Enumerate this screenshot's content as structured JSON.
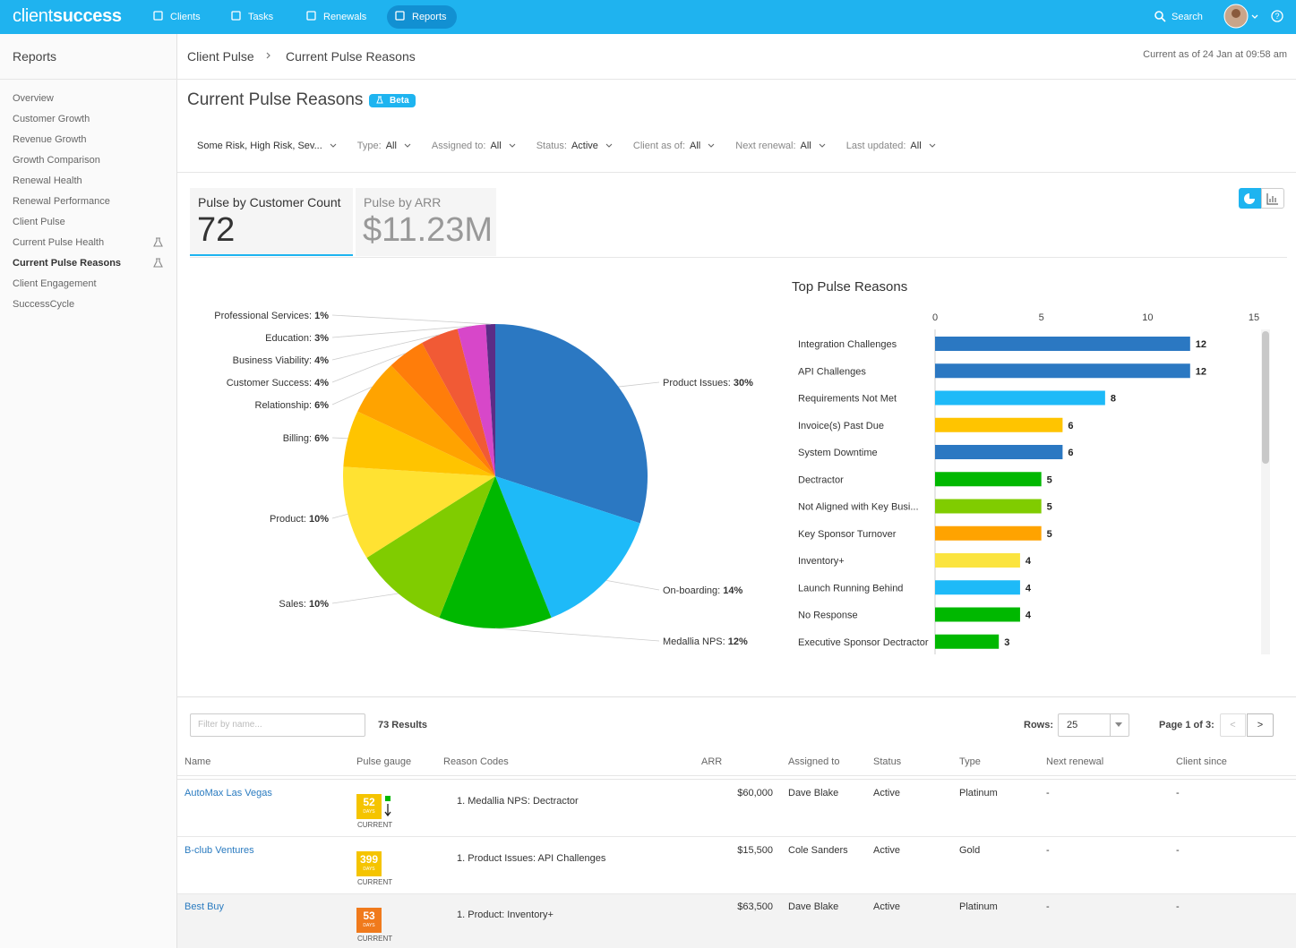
{
  "nav": {
    "logo": [
      "client",
      "success"
    ],
    "items": [
      "Clients",
      "Tasks",
      "Renewals",
      "Reports"
    ],
    "active": 3,
    "search": "Search"
  },
  "sidebar": {
    "title": "Reports",
    "items": [
      "Overview",
      "Customer Growth",
      "Revenue Growth",
      "Growth Comparison",
      "Renewal Health",
      "Renewal Performance",
      "Client Pulse",
      "Current Pulse Health",
      "Current Pulse Reasons",
      "Client Engagement",
      "SuccessCycle"
    ],
    "active": 8,
    "beta_items": [
      7,
      8
    ]
  },
  "breadcrumb": [
    "Client Pulse",
    "Current Pulse Reasons"
  ],
  "timestamp": "Current as of 24 Jan at 09:58 am",
  "page_title": "Current Pulse Reasons",
  "badge": "Beta",
  "filters": [
    {
      "value": "Some Risk, High Risk, Sev..."
    },
    {
      "label": "Type:",
      "value": "All"
    },
    {
      "label": "Assigned to:",
      "value": "All"
    },
    {
      "label": "Status:",
      "value": "Active"
    },
    {
      "label": "Client as of:",
      "value": "All"
    },
    {
      "label": "Next renewal:",
      "value": "All"
    },
    {
      "label": "Last updated:",
      "value": "All"
    }
  ],
  "tabs": [
    {
      "label": "Pulse by Customer Count",
      "value": 72
    },
    {
      "label": "Pulse by ARR",
      "value": "$11.23M"
    }
  ],
  "active_tab": 0,
  "chart_data": [
    {
      "type": "pie",
      "categories": [
        "Product Issues:",
        "On-boarding:",
        "Medallia NPS:",
        "Sales:",
        "Product:",
        "Billing:",
        "Relationship:",
        "Customer Success:",
        "Business Viability:",
        "Education:",
        "Professional Services:"
      ],
      "values": [
        30,
        14,
        12,
        10,
        10,
        6,
        6,
        4,
        4,
        3,
        1
      ],
      "value_labels": [
        "30%",
        "14%",
        "12%",
        "10%",
        "10%",
        "6%",
        "6%",
        "4%",
        "4%",
        "3%",
        "1%"
      ],
      "colors": [
        "#2b78c2",
        "#1ebaf8",
        "#00b800",
        "#80cc00",
        "#ffe232",
        "#ffc400",
        "#ffa300",
        "#ff7d0a",
        "#f15a35",
        "#d747c9",
        "#5c2c86"
      ]
    },
    {
      "type": "hbar",
      "title": "Top Pulse Reasons",
      "categories": [
        "Integration Challenges",
        "API Challenges",
        "Requirements Not Met",
        "Invoice(s) Past Due",
        "System Downtime",
        "Dectractor",
        "Not Aligned with Key Busi...",
        "Key Sponsor Turnover",
        "Inventory+",
        "Launch Running Behind",
        "No Response",
        "Executive Sponsor Dectractor"
      ],
      "values": [
        12,
        12,
        8,
        6,
        6,
        5,
        5,
        5,
        4,
        4,
        4,
        3
      ],
      "colors": [
        "#2b78c2",
        "#2b78c2",
        "#1ebaf8",
        "#ffc400",
        "#2b78c2",
        "#00b800",
        "#80cc00",
        "#ffa300",
        "#fbe43f",
        "#1ebaf8",
        "#00b800",
        "#00b800"
      ],
      "xlim": [
        0,
        15
      ],
      "xticks": [
        0,
        5,
        10,
        15
      ]
    }
  ],
  "table": {
    "filter_placeholder": "Filter by name...",
    "results": "73 Results",
    "rows_label": "Rows:",
    "rows_value": 25,
    "page": "Page 1 of 3:",
    "prev": "<",
    "next": ">",
    "columns": [
      "Name",
      "Pulse gauge",
      "Reason Codes",
      "ARR",
      "Assigned to",
      "Status",
      "Type",
      "Next renewal",
      "Client since"
    ],
    "rows": [
      {
        "name": "AutoMax Las Vegas",
        "gauge": 52,
        "gauge_unit": "DAYS",
        "gauge_status": "CURRENT",
        "gauge_color": "#f5c400",
        "reason": "1. Medallia NPS: Dectractor",
        "arr": "$60,000",
        "assigned": "Dave Blake",
        "status": "Active",
        "type": "Platinum",
        "next_renewal": "-",
        "client_since": "-"
      },
      {
        "name": "B-club Ventures",
        "gauge": 399,
        "gauge_unit": "DAYS",
        "gauge_status": "CURRENT",
        "gauge_color": "#f5c400",
        "reason": "1. Product Issues: API Challenges",
        "arr": "$15,500",
        "assigned": "Cole Sanders",
        "status": "Active",
        "type": "Gold",
        "next_renewal": "-",
        "client_since": "-"
      },
      {
        "name": "Best Buy",
        "gauge": 53,
        "gauge_unit": "DAYS",
        "gauge_status": "CURRENT",
        "gauge_color": "#f07a1c",
        "reason": "1. Product: Inventory+",
        "arr": "$63,500",
        "assigned": "Dave Blake",
        "status": "Active",
        "type": "Platinum",
        "next_renewal": "-",
        "client_since": "-"
      }
    ]
  }
}
